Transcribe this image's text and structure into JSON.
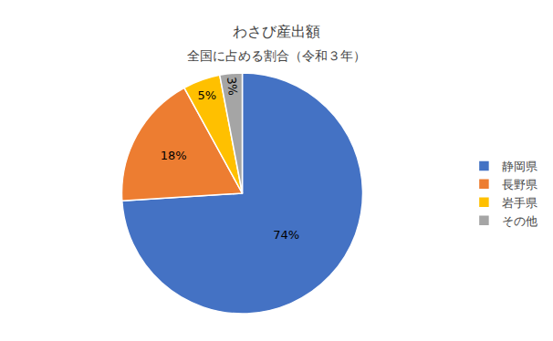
{
  "chart_data": {
    "type": "pie",
    "title": "わさび産出額",
    "subtitle": "全国に占める割合（令和３年）",
    "categories": [
      "静岡県",
      "長野県",
      "岩手県",
      "その他"
    ],
    "values": [
      74,
      18,
      5,
      3
    ],
    "value_labels": [
      "74%",
      "18%",
      "5%",
      "3%"
    ],
    "colors": [
      "#4472C4",
      "#ED7D31",
      "#FFC000",
      "#A5A5A5"
    ],
    "data_labels": true,
    "legend": "right"
  }
}
